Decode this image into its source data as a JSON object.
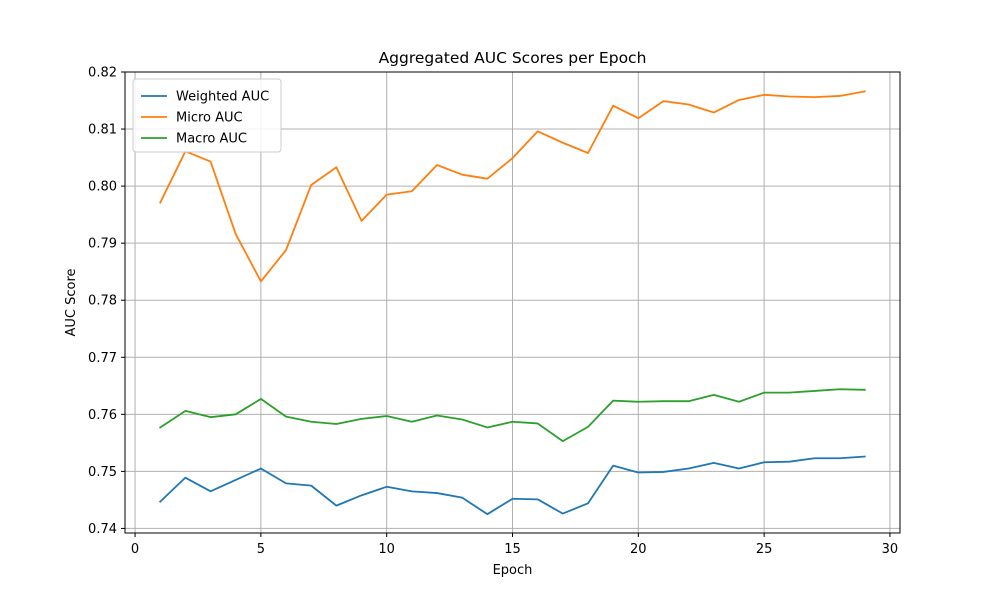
{
  "chart_data": {
    "type": "line",
    "title": "Aggregated AUC Scores per Epoch",
    "xlabel": "Epoch",
    "ylabel": "AUC Score",
    "xlim": [
      -0.4,
      30.4
    ],
    "ylim": [
      0.7392,
      0.82
    ],
    "xticks": [
      0,
      5,
      10,
      15,
      20,
      25,
      30
    ],
    "yticks": [
      0.74,
      0.75,
      0.76,
      0.77,
      0.78,
      0.79,
      0.8,
      0.81,
      0.82
    ],
    "ytick_labels": [
      "0.74",
      "0.75",
      "0.76",
      "0.77",
      "0.78",
      "0.79",
      "0.80",
      "0.81",
      "0.82"
    ],
    "grid": true,
    "legend": "top-left",
    "x": [
      1,
      2,
      3,
      4,
      5,
      6,
      7,
      8,
      9,
      10,
      11,
      12,
      13,
      14,
      15,
      16,
      17,
      18,
      19,
      20,
      21,
      22,
      23,
      24,
      25,
      26,
      27,
      28,
      29
    ],
    "series": [
      {
        "name": "Weighted AUC",
        "color": "#1f77b4",
        "values": [
          0.7447,
          0.7489,
          0.7465,
          0.7485,
          0.7505,
          0.7479,
          0.7475,
          0.744,
          0.7458,
          0.7473,
          0.7465,
          0.7462,
          0.7454,
          0.7425,
          0.7452,
          0.7451,
          0.7426,
          0.7444,
          0.751,
          0.7498,
          0.7499,
          0.7505,
          0.7515,
          0.7505,
          0.7516,
          0.7517,
          0.7523,
          0.7523,
          0.7526
        ]
      },
      {
        "name": "Micro AUC",
        "color": "#ff7f0e",
        "values": [
          0.7971,
          0.8061,
          0.8043,
          0.7916,
          0.7833,
          0.7888,
          0.8002,
          0.8033,
          0.7939,
          0.7985,
          0.7991,
          0.8037,
          0.802,
          0.8013,
          0.8049,
          0.8096,
          0.8076,
          0.8058,
          0.8141,
          0.8119,
          0.8149,
          0.8143,
          0.8129,
          0.8151,
          0.816,
          0.8157,
          0.8156,
          0.8158,
          0.8166
        ]
      },
      {
        "name": "Macro AUC",
        "color": "#2ca02c",
        "values": [
          0.7577,
          0.7606,
          0.7595,
          0.76,
          0.7627,
          0.7596,
          0.7587,
          0.7583,
          0.7592,
          0.7597,
          0.7587,
          0.7598,
          0.7591,
          0.7577,
          0.7587,
          0.7584,
          0.7553,
          0.7578,
          0.7624,
          0.7622,
          0.7623,
          0.7623,
          0.7634,
          0.7622,
          0.7638,
          0.7638,
          0.7641,
          0.7644,
          0.7643
        ]
      }
    ]
  }
}
